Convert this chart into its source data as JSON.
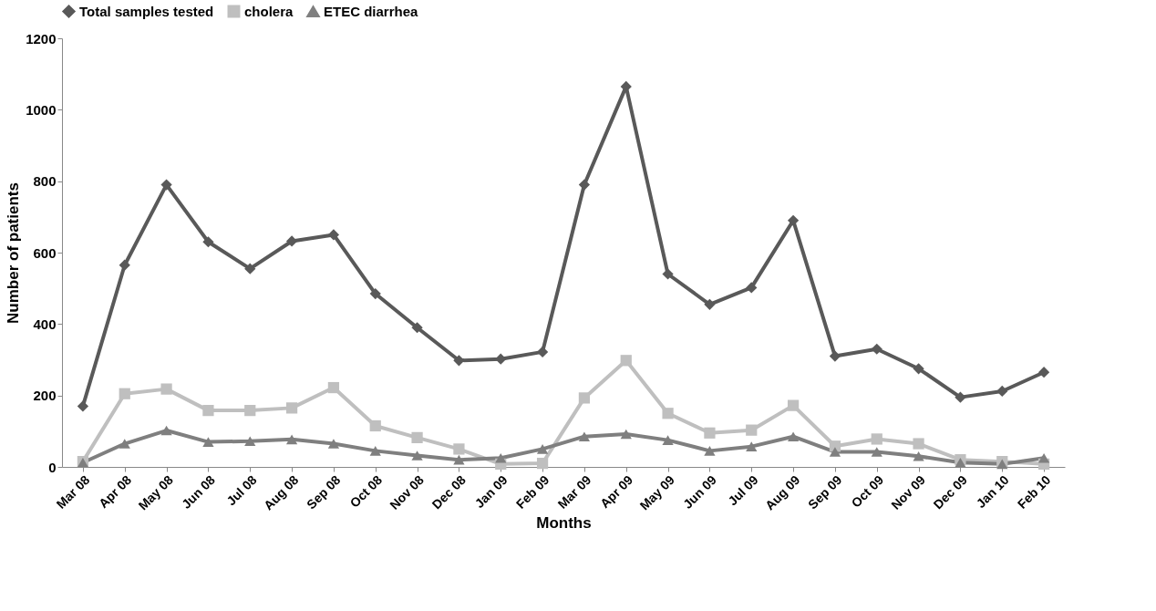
{
  "chart_data": {
    "type": "line",
    "xlabel": "Months",
    "ylabel": "Number of patients",
    "categories": [
      "Mar 08",
      "Apr 08",
      "May 08",
      "Jun 08",
      "Jul 08",
      "Aug 08",
      "Sep 08",
      "Oct 08",
      "Nov 08",
      "Dec 08",
      "Jan 09",
      "Feb 09",
      "Mar 09",
      "Apr 09",
      "May 09",
      "Jun 09",
      "Jul 09",
      "Aug 09",
      "Sep 09",
      "Oct 09",
      "Nov 09",
      "Dec 09",
      "Jan 10",
      "Feb 10"
    ],
    "series": [
      {
        "name": "Total samples tested",
        "color": "#595959",
        "marker": "diamond",
        "values": [
          170,
          565,
          790,
          630,
          555,
          632,
          650,
          485,
          390,
          298,
          302,
          322,
          790,
          1065,
          540,
          455,
          502,
          690,
          310,
          330,
          275,
          195,
          212,
          265
        ]
      },
      {
        "name": "cholera",
        "color": "#bfbfbf",
        "marker": "square",
        "values": [
          15,
          205,
          218,
          158,
          158,
          165,
          222,
          115,
          82,
          50,
          8,
          10,
          193,
          298,
          150,
          95,
          103,
          172,
          58,
          78,
          65,
          20,
          15,
          8
        ]
      },
      {
        "name": "ETEC diarrhea",
        "color": "#7f7f7f",
        "marker": "triangle",
        "values": [
          12,
          65,
          102,
          70,
          72,
          77,
          65,
          45,
          32,
          20,
          25,
          50,
          85,
          92,
          75,
          45,
          57,
          85,
          42,
          42,
          30,
          12,
          8,
          25
        ]
      }
    ],
    "ylim": [
      0,
      1200
    ],
    "yticks": [
      0,
      200,
      400,
      600,
      800,
      1000,
      1200
    ],
    "grid": false,
    "legend": "top",
    "line_style": "solid"
  }
}
